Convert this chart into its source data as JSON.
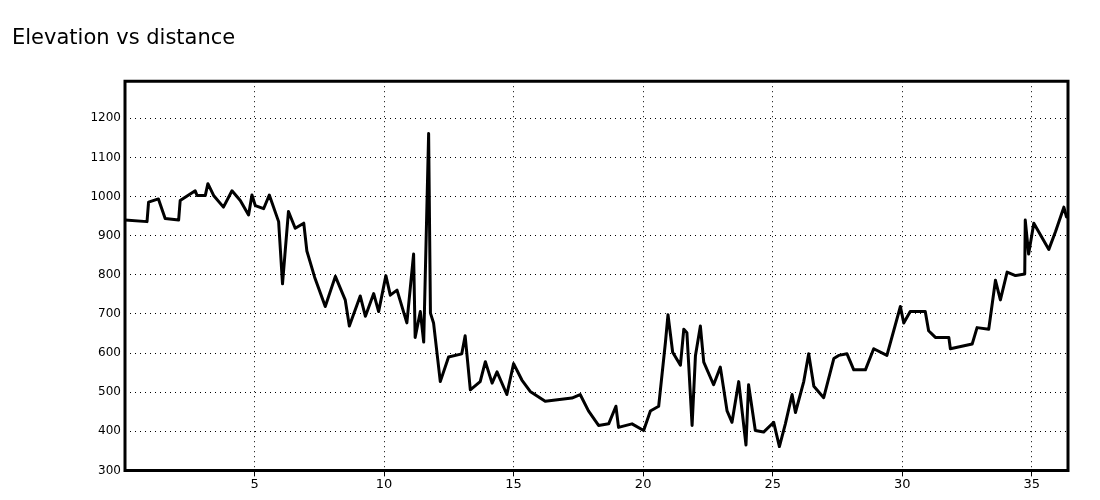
{
  "chart_data": {
    "type": "line",
    "title": "Elevation vs distance",
    "x": [
      0.0,
      0.85,
      0.91,
      1.29,
      1.55,
      2.07,
      2.13,
      2.71,
      2.78,
      3.1,
      3.2,
      3.42,
      3.8,
      4.13,
      4.45,
      4.77,
      4.9,
      5.03,
      5.35,
      5.57,
      5.93,
      6.08,
      6.31,
      6.57,
      6.9,
      7.02,
      7.32,
      7.73,
      8.12,
      8.5,
      8.66,
      9.08,
      9.28,
      9.6,
      9.79,
      10.07,
      10.24,
      10.5,
      10.88,
      11.14,
      11.2,
      11.4,
      11.53,
      11.72,
      11.79,
      11.91,
      12.17,
      12.49,
      13.0,
      13.13,
      13.33,
      13.71,
      13.91,
      14.17,
      14.36,
      14.74,
      15.0,
      15.32,
      15.64,
      16.22,
      17.25,
      17.57,
      17.89,
      18.28,
      18.67,
      18.95,
      19.05,
      19.57,
      20.02,
      20.28,
      20.6,
      20.86,
      20.96,
      21.14,
      21.44,
      21.57,
      21.69,
      21.89,
      22.02,
      22.21,
      22.34,
      22.72,
      22.98,
      23.24,
      23.43,
      23.69,
      23.97,
      24.07,
      24.33,
      24.65,
      25.04,
      25.26,
      25.49,
      25.75,
      25.88,
      26.2,
      26.39,
      26.59,
      26.97,
      27.36,
      27.55,
      27.87,
      28.13,
      28.58,
      28.9,
      29.41,
      29.93,
      30.06,
      30.31,
      30.89,
      31.02,
      31.28,
      31.8,
      31.86,
      32.7,
      32.89,
      33.34,
      33.6,
      33.79,
      34.05,
      34.37,
      34.73,
      34.75,
      34.88,
      35.08,
      35.66,
      35.92,
      36.24,
      36.34
    ],
    "series": [
      {
        "color": "#000000",
        "values": [
          940,
          936,
          986,
          994,
          944,
          940,
          990,
          1015,
          1003,
          1003,
          1033,
          1003,
          973,
          1015,
          990,
          953,
          1004,
          977,
          969,
          1004,
          936,
          777,
          962,
          919,
          932,
          861,
          794,
          719,
          796,
          736,
          669,
          746,
          694,
          752,
          706,
          798,
          748,
          761,
          677,
          853,
          640,
          706,
          628,
          1161,
          702,
          677,
          527,
          590,
          598,
          644,
          506,
          527,
          578,
          523,
          552,
          494,
          573,
          531,
          502,
          477,
          485,
          494,
          452,
          415,
          419,
          464,
          410,
          419,
          402,
          452,
          464,
          627,
          698,
          602,
          569,
          661,
          652,
          415,
          594,
          669,
          577,
          519,
          564,
          452,
          423,
          527,
          365,
          519,
          402,
          398,
          423,
          361,
          419,
          494,
          448,
          527,
          598,
          515,
          486,
          586,
          594,
          598,
          557,
          557,
          611,
          594,
          719,
          677,
          706,
          706,
          657,
          640,
          640,
          611,
          623,
          665,
          661,
          786,
          736,
          807,
          798,
          802,
          940,
          853,
          932,
          865,
          911,
          973,
          948
        ]
      }
    ],
    "xlim": [
      0,
      36.4
    ],
    "ylim": [
      300,
      1295
    ],
    "xticks": [
      5,
      10,
      15,
      20,
      25,
      30,
      35
    ],
    "yticks": [
      300,
      400,
      500,
      600,
      700,
      800,
      900,
      1000,
      1100,
      1200
    ],
    "grid": true,
    "line_style": "solid",
    "marker": "none",
    "legend": false
  }
}
